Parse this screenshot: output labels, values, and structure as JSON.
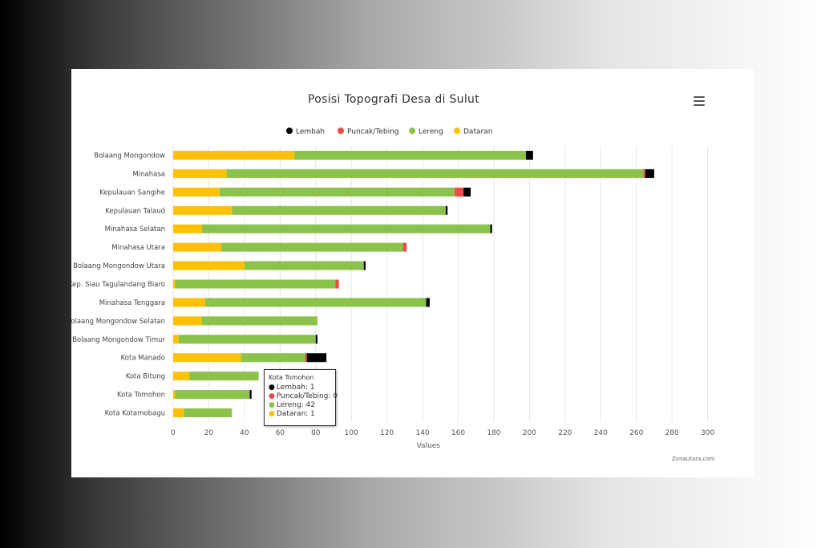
{
  "chart_data": {
    "type": "stacked-bar-horizontal",
    "title": "Posisi Topografi Desa di Sulut",
    "xlabel": "Values",
    "ylabel": "",
    "xlim": [
      0,
      300
    ],
    "xticks": [
      0,
      20,
      40,
      60,
      80,
      100,
      120,
      140,
      160,
      180,
      200,
      220,
      240,
      260,
      280,
      300
    ],
    "grid": true,
    "legend_position": "top-center",
    "categories": [
      "Bolaang Mongondow",
      "Minahasa",
      "Kepulauan Sangihe",
      "Kepulauan Talaud",
      "Minahasa Selatan",
      "Minahasa Utara",
      "Bolaang Mongondow Utara",
      "Kep. Siau Tagulandang Biaro",
      "Minahasa Tenggara",
      "Bolaang Mongondow Selatan",
      "Bolaang Mongondow Timur",
      "Kota Manado",
      "Kota Bitung",
      "Kota Tomohon",
      "Kota Kotamobagu"
    ],
    "stack_order": [
      "Dataran",
      "Lereng",
      "Puncak/Tebing",
      "Lembah"
    ],
    "series": [
      {
        "name": "Lembah",
        "color": "#000000",
        "values": [
          4,
          5,
          4,
          1,
          1,
          0,
          1,
          0,
          2,
          0,
          1,
          11,
          0,
          1,
          0
        ]
      },
      {
        "name": "Puncak/Tebing",
        "color": "#f04a45",
        "values": [
          0,
          1,
          5,
          0,
          0,
          2,
          0,
          2,
          0,
          0,
          0,
          1,
          0,
          0,
          0
        ]
      },
      {
        "name": "Lereng",
        "color": "#8bc34a",
        "values": [
          130,
          234,
          132,
          120,
          162,
          102,
          67,
          90,
          124,
          65,
          77,
          36,
          39,
          42,
          27
        ]
      },
      {
        "name": "Dataran",
        "color": "#ffc107",
        "values": [
          68,
          30,
          26,
          33,
          16,
          27,
          40,
          1,
          18,
          16,
          3,
          38,
          9,
          1,
          6
        ]
      }
    ]
  },
  "tooltip": {
    "title": "Kota Tomohon",
    "rows": [
      {
        "label": "Lembah: 1",
        "color": "#000000"
      },
      {
        "label": "Puncak/Tebing: 0",
        "color": "#f04a45"
      },
      {
        "label": "Lereng: 42",
        "color": "#8bc34a"
      },
      {
        "label": "Dataran: 1",
        "color": "#ffc107"
      }
    ]
  },
  "credit": "Zonautara.com",
  "menu_icon": "hamburger-menu-icon"
}
